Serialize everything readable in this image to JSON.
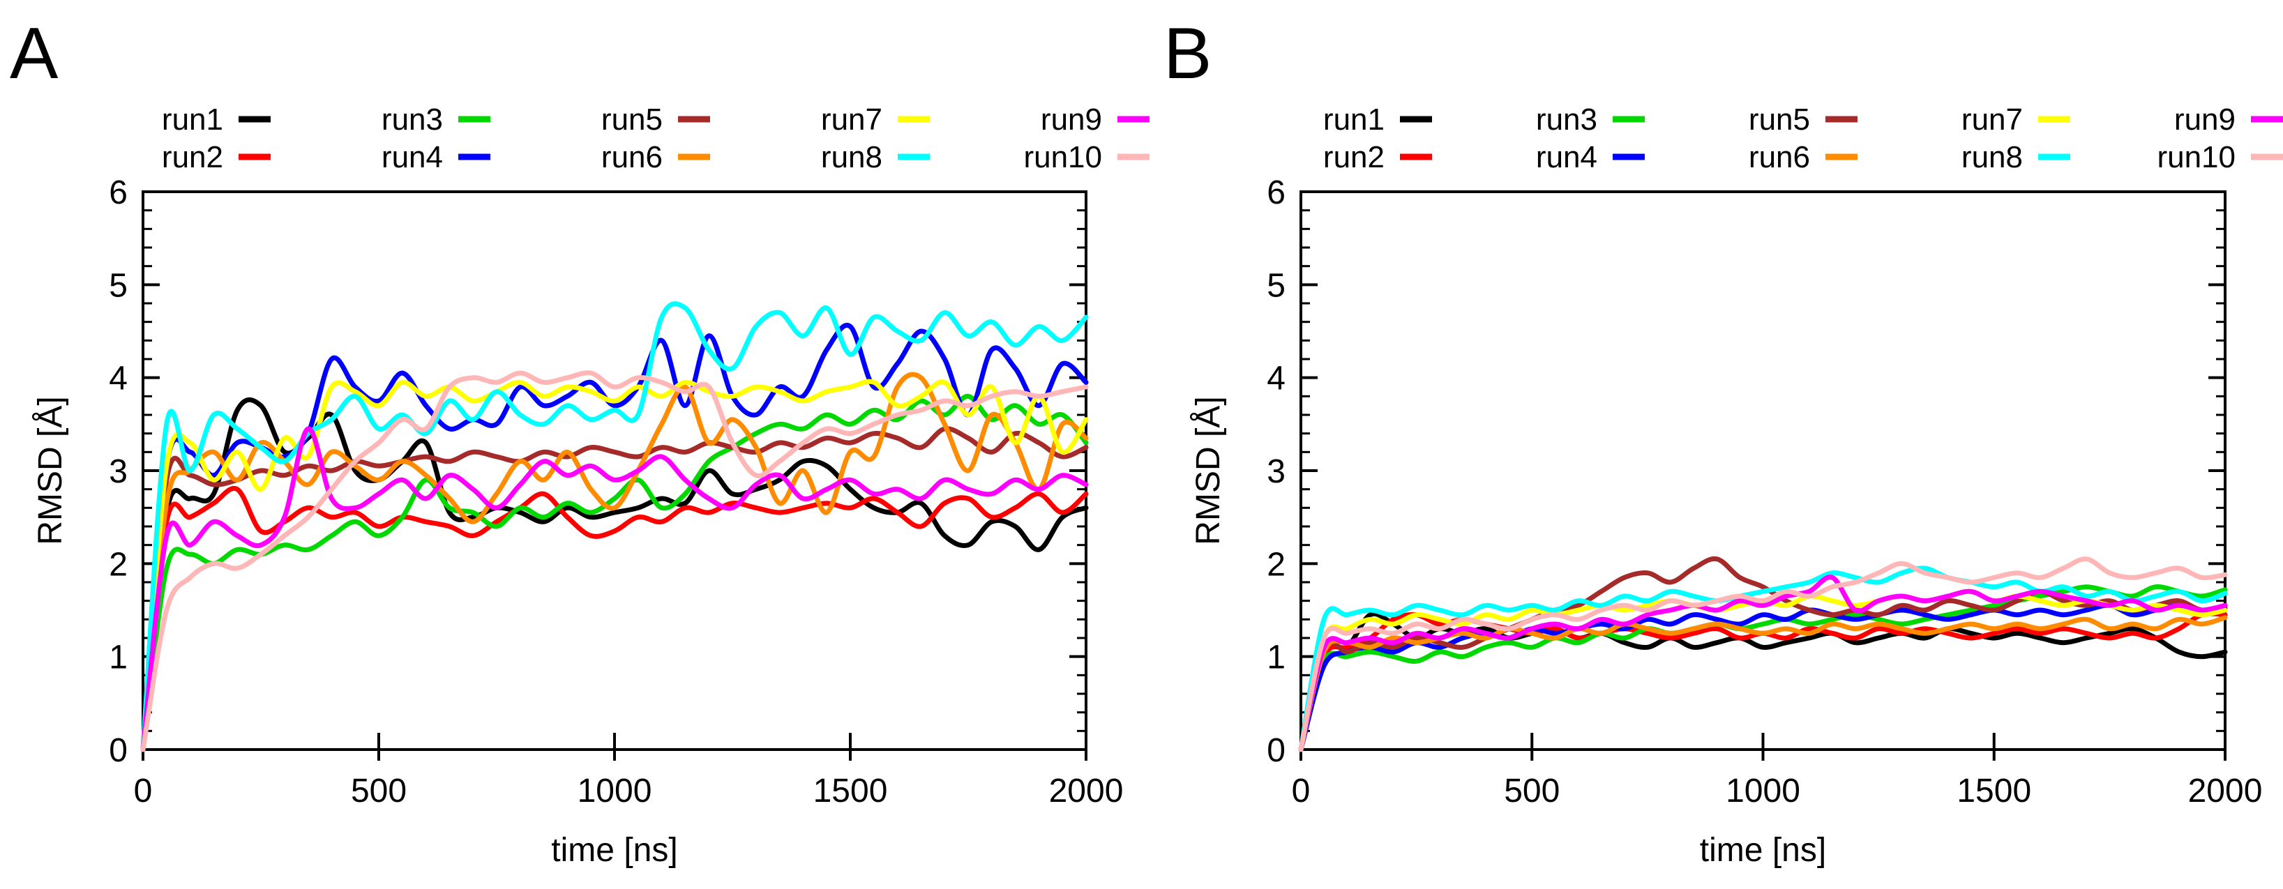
{
  "figure": {
    "panel_labels": [
      "A",
      "B"
    ]
  },
  "chart_data": [
    {
      "panel": "A",
      "type": "line",
      "xlabel": "time [ns]",
      "ylabel": "RMSD [Å]",
      "xlim": [
        0,
        2000
      ],
      "ylim": [
        0,
        6
      ],
      "x_ticks": [
        0,
        500,
        1000,
        1500,
        2000
      ],
      "y_ticks": [
        0,
        1,
        2,
        3,
        4,
        5,
        6
      ],
      "y_minor_step": 0.2,
      "legend_position": "above-plot, 5 columns x 2 rows",
      "x": [
        0,
        50,
        100,
        150,
        200,
        250,
        300,
        350,
        400,
        450,
        500,
        550,
        600,
        650,
        700,
        750,
        800,
        850,
        900,
        950,
        1000,
        1050,
        1100,
        1150,
        1200,
        1250,
        1300,
        1350,
        1400,
        1450,
        1500,
        1550,
        1600,
        1650,
        1700,
        1750,
        1800,
        1850,
        1900,
        1950,
        2000
      ],
      "series": [
        {
          "name": "run1",
          "color": "#000000",
          "values": [
            0,
            2.55,
            2.7,
            2.75,
            3.65,
            3.7,
            3.2,
            3.35,
            3.6,
            3.0,
            2.9,
            3.1,
            3.3,
            2.55,
            2.5,
            2.6,
            2.55,
            2.45,
            2.6,
            2.5,
            2.55,
            2.6,
            2.7,
            2.65,
            3.0,
            2.75,
            2.8,
            2.9,
            3.1,
            3.05,
            2.8,
            2.6,
            2.55,
            2.65,
            2.3,
            2.2,
            2.45,
            2.4,
            2.15,
            2.5,
            2.6
          ]
        },
        {
          "name": "run2",
          "color": "#ff0000",
          "values": [
            0,
            2.45,
            2.5,
            2.65,
            2.8,
            2.35,
            2.45,
            2.6,
            2.5,
            2.55,
            2.4,
            2.5,
            2.45,
            2.4,
            2.3,
            2.45,
            2.6,
            2.75,
            2.5,
            2.3,
            2.35,
            2.5,
            2.45,
            2.6,
            2.55,
            2.65,
            2.6,
            2.55,
            2.6,
            2.65,
            2.6,
            2.7,
            2.55,
            2.4,
            2.65,
            2.7,
            2.5,
            2.6,
            2.75,
            2.55,
            2.75
          ]
        },
        {
          "name": "run3",
          "color": "#00d800",
          "values": [
            0,
            1.95,
            2.1,
            2.0,
            2.15,
            2.1,
            2.2,
            2.15,
            2.3,
            2.45,
            2.3,
            2.5,
            2.9,
            2.6,
            2.55,
            2.4,
            2.6,
            2.5,
            2.65,
            2.55,
            2.7,
            2.9,
            2.6,
            2.75,
            3.1,
            3.25,
            3.4,
            3.5,
            3.45,
            3.6,
            3.5,
            3.65,
            3.55,
            3.75,
            3.6,
            3.8,
            3.55,
            3.7,
            3.5,
            3.6,
            3.3
          ]
        },
        {
          "name": "run4",
          "color": "#0000ff",
          "values": [
            0,
            3.05,
            3.2,
            2.95,
            3.3,
            3.25,
            3.15,
            3.4,
            4.2,
            3.9,
            3.75,
            4.05,
            3.7,
            3.45,
            3.55,
            3.5,
            3.9,
            3.7,
            3.8,
            3.95,
            3.7,
            3.9,
            4.4,
            3.7,
            4.45,
            3.8,
            3.6,
            3.9,
            3.8,
            4.3,
            4.55,
            3.9,
            4.15,
            4.5,
            4.2,
            3.6,
            4.3,
            4.1,
            3.7,
            4.15,
            3.95
          ]
        },
        {
          "name": "run5",
          "color": "#a52a2a",
          "values": [
            0,
            2.9,
            2.95,
            2.85,
            2.9,
            3.0,
            2.95,
            3.05,
            3.0,
            3.1,
            3.05,
            3.1,
            3.15,
            3.1,
            3.2,
            3.15,
            3.1,
            3.2,
            3.15,
            3.25,
            3.2,
            3.15,
            3.25,
            3.2,
            3.3,
            3.25,
            3.2,
            3.3,
            3.25,
            3.35,
            3.3,
            3.4,
            3.35,
            3.25,
            3.45,
            3.35,
            3.2,
            3.4,
            3.3,
            3.15,
            3.25
          ]
        },
        {
          "name": "run6",
          "color": "#ff8c00",
          "values": [
            0,
            2.65,
            3.0,
            3.2,
            2.9,
            3.3,
            3.1,
            2.85,
            3.2,
            3.05,
            2.9,
            3.1,
            2.95,
            2.7,
            2.45,
            2.75,
            3.1,
            2.9,
            3.2,
            2.8,
            2.6,
            3.0,
            3.5,
            3.9,
            3.3,
            3.55,
            3.25,
            2.65,
            3.0,
            2.55,
            3.2,
            3.15,
            3.9,
            4.0,
            3.5,
            3.0,
            3.6,
            3.3,
            2.8,
            3.5,
            3.35
          ]
        },
        {
          "name": "run7",
          "color": "#ffff00",
          "values": [
            0,
            3.05,
            3.3,
            2.9,
            3.2,
            2.8,
            3.35,
            3.15,
            3.9,
            3.85,
            3.7,
            3.95,
            3.8,
            3.9,
            3.75,
            3.85,
            3.95,
            3.8,
            3.9,
            3.85,
            3.75,
            3.9,
            3.8,
            3.95,
            3.85,
            3.8,
            3.9,
            3.85,
            3.75,
            3.85,
            3.9,
            3.95,
            3.7,
            3.8,
            3.95,
            3.6,
            3.9,
            3.3,
            3.8,
            3.2,
            3.55
          ]
        },
        {
          "name": "run8",
          "color": "#00ffff",
          "values": [
            0,
            3.5,
            3.0,
            3.6,
            3.45,
            3.25,
            3.1,
            3.4,
            3.55,
            3.8,
            3.45,
            3.6,
            3.4,
            3.75,
            3.55,
            3.85,
            3.6,
            3.5,
            3.7,
            3.55,
            3.65,
            3.6,
            4.65,
            4.75,
            4.3,
            4.1,
            4.55,
            4.7,
            4.45,
            4.75,
            4.25,
            4.65,
            4.5,
            4.4,
            4.7,
            4.45,
            4.6,
            4.35,
            4.55,
            4.4,
            4.65
          ]
        },
        {
          "name": "run9",
          "color": "#ff00ff",
          "values": [
            0,
            2.3,
            2.2,
            2.45,
            2.3,
            2.2,
            2.5,
            3.45,
            2.7,
            2.6,
            2.75,
            2.9,
            2.7,
            2.95,
            2.8,
            2.6,
            2.85,
            3.1,
            2.95,
            3.05,
            2.9,
            3.0,
            3.15,
            2.9,
            2.7,
            2.6,
            2.85,
            2.95,
            2.7,
            2.8,
            2.9,
            2.75,
            2.8,
            2.7,
            2.9,
            2.8,
            2.75,
            2.9,
            2.8,
            2.95,
            2.85
          ]
        },
        {
          "name": "run10",
          "color": "#ffb6b6",
          "values": [
            0,
            1.5,
            1.85,
            2.0,
            1.95,
            2.1,
            2.3,
            2.5,
            2.8,
            3.1,
            3.3,
            3.55,
            3.45,
            3.9,
            4.0,
            3.95,
            4.05,
            3.95,
            4.0,
            4.05,
            3.9,
            4.0,
            3.95,
            3.85,
            3.9,
            3.3,
            2.95,
            3.1,
            3.3,
            3.45,
            3.4,
            3.5,
            3.6,
            3.65,
            3.75,
            3.7,
            3.8,
            3.85,
            3.8,
            3.85,
            3.9
          ]
        }
      ]
    },
    {
      "panel": "B",
      "type": "line",
      "xlabel": "time [ns]",
      "ylabel": "RMSD [Å]",
      "xlim": [
        0,
        2000
      ],
      "ylim": [
        0,
        6
      ],
      "x_ticks": [
        0,
        500,
        1000,
        1500,
        2000
      ],
      "y_ticks": [
        0,
        1,
        2,
        3,
        4,
        5,
        6
      ],
      "y_minor_step": 0.2,
      "legend_position": "above-plot, 5 columns x 2 rows",
      "x": [
        0,
        50,
        100,
        150,
        200,
        250,
        300,
        350,
        400,
        450,
        500,
        550,
        600,
        650,
        700,
        750,
        800,
        850,
        900,
        950,
        1000,
        1050,
        1100,
        1150,
        1200,
        1250,
        1300,
        1350,
        1400,
        1450,
        1500,
        1550,
        1600,
        1650,
        1700,
        1750,
        1800,
        1850,
        1900,
        1950,
        2000
      ],
      "series": [
        {
          "name": "run1",
          "color": "#000000",
          "values": [
            0,
            1.05,
            1.1,
            1.45,
            1.35,
            1.2,
            1.3,
            1.25,
            1.3,
            1.2,
            1.25,
            1.3,
            1.2,
            1.25,
            1.15,
            1.1,
            1.2,
            1.1,
            1.15,
            1.2,
            1.1,
            1.15,
            1.2,
            1.25,
            1.15,
            1.2,
            1.25,
            1.2,
            1.3,
            1.25,
            1.2,
            1.25,
            1.2,
            1.15,
            1.2,
            1.25,
            1.3,
            1.2,
            1.05,
            1.0,
            1.05
          ]
        },
        {
          "name": "run2",
          "color": "#ff0000",
          "values": [
            0,
            1.0,
            1.1,
            1.2,
            1.4,
            1.45,
            1.35,
            1.4,
            1.35,
            1.3,
            1.25,
            1.3,
            1.2,
            1.25,
            1.3,
            1.25,
            1.2,
            1.25,
            1.3,
            1.2,
            1.25,
            1.2,
            1.3,
            1.25,
            1.2,
            1.3,
            1.25,
            1.3,
            1.25,
            1.2,
            1.25,
            1.3,
            1.25,
            1.3,
            1.25,
            1.2,
            1.25,
            1.2,
            1.3,
            1.45,
            1.45
          ]
        },
        {
          "name": "run3",
          "color": "#00d800",
          "values": [
            0,
            0.95,
            1.0,
            1.05,
            1.0,
            0.95,
            1.05,
            1.0,
            1.1,
            1.15,
            1.1,
            1.2,
            1.15,
            1.25,
            1.2,
            1.3,
            1.25,
            1.3,
            1.35,
            1.3,
            1.35,
            1.4,
            1.35,
            1.4,
            1.45,
            1.4,
            1.35,
            1.4,
            1.45,
            1.5,
            1.55,
            1.6,
            1.65,
            1.7,
            1.75,
            1.7,
            1.65,
            1.75,
            1.7,
            1.65,
            1.72
          ]
        },
        {
          "name": "run4",
          "color": "#0000ff",
          "values": [
            0,
            0.9,
            1.05,
            1.1,
            1.05,
            1.15,
            1.1,
            1.2,
            1.25,
            1.2,
            1.3,
            1.25,
            1.3,
            1.35,
            1.3,
            1.4,
            1.35,
            1.45,
            1.4,
            1.35,
            1.45,
            1.4,
            1.5,
            1.45,
            1.4,
            1.45,
            1.5,
            1.45,
            1.4,
            1.45,
            1.5,
            1.45,
            1.5,
            1.45,
            1.5,
            1.55,
            1.45,
            1.5,
            1.55,
            1.5,
            1.52
          ]
        },
        {
          "name": "run5",
          "color": "#a52a2a",
          "values": [
            0,
            1.1,
            1.05,
            1.15,
            1.1,
            1.2,
            1.15,
            1.1,
            1.2,
            1.3,
            1.4,
            1.5,
            1.55,
            1.7,
            1.85,
            1.9,
            1.8,
            1.95,
            2.05,
            1.85,
            1.75,
            1.6,
            1.5,
            1.45,
            1.5,
            1.45,
            1.55,
            1.5,
            1.6,
            1.55,
            1.5,
            1.6,
            1.7,
            1.6,
            1.55,
            1.6,
            1.5,
            1.55,
            1.6,
            1.5,
            1.55
          ]
        },
        {
          "name": "run6",
          "color": "#ff8c00",
          "values": [
            0,
            1.05,
            1.15,
            1.1,
            1.2,
            1.15,
            1.2,
            1.25,
            1.2,
            1.3,
            1.25,
            1.2,
            1.3,
            1.25,
            1.35,
            1.3,
            1.25,
            1.3,
            1.35,
            1.3,
            1.25,
            1.3,
            1.25,
            1.35,
            1.3,
            1.35,
            1.3,
            1.25,
            1.3,
            1.35,
            1.3,
            1.35,
            1.3,
            1.35,
            1.4,
            1.3,
            1.35,
            1.3,
            1.4,
            1.35,
            1.42
          ]
        },
        {
          "name": "run7",
          "color": "#ffff00",
          "values": [
            0,
            1.2,
            1.3,
            1.4,
            1.35,
            1.45,
            1.4,
            1.35,
            1.45,
            1.4,
            1.5,
            1.45,
            1.5,
            1.55,
            1.5,
            1.55,
            1.6,
            1.55,
            1.5,
            1.55,
            1.6,
            1.55,
            1.65,
            1.6,
            1.55,
            1.6,
            1.65,
            1.6,
            1.65,
            1.7,
            1.6,
            1.65,
            1.6,
            1.55,
            1.6,
            1.55,
            1.5,
            1.55,
            1.5,
            1.45,
            1.5
          ]
        },
        {
          "name": "run8",
          "color": "#00ffff",
          "values": [
            0,
            1.4,
            1.45,
            1.5,
            1.45,
            1.55,
            1.5,
            1.45,
            1.55,
            1.5,
            1.55,
            1.5,
            1.6,
            1.55,
            1.65,
            1.6,
            1.7,
            1.65,
            1.6,
            1.65,
            1.7,
            1.75,
            1.8,
            1.9,
            1.85,
            1.8,
            1.9,
            1.95,
            1.85,
            1.8,
            1.75,
            1.8,
            1.7,
            1.75,
            1.65,
            1.7,
            1.6,
            1.65,
            1.7,
            1.6,
            1.68
          ]
        },
        {
          "name": "run9",
          "color": "#ff00ff",
          "values": [
            0,
            1.1,
            1.15,
            1.2,
            1.15,
            1.25,
            1.2,
            1.3,
            1.25,
            1.2,
            1.3,
            1.35,
            1.3,
            1.4,
            1.35,
            1.45,
            1.5,
            1.55,
            1.5,
            1.6,
            1.55,
            1.65,
            1.7,
            1.85,
            1.5,
            1.6,
            1.65,
            1.6,
            1.65,
            1.7,
            1.6,
            1.65,
            1.7,
            1.65,
            1.6,
            1.55,
            1.6,
            1.5,
            1.55,
            1.5,
            1.55
          ]
        },
        {
          "name": "run10",
          "color": "#ffb6b6",
          "values": [
            0,
            1.2,
            1.25,
            1.3,
            1.25,
            1.35,
            1.3,
            1.4,
            1.35,
            1.3,
            1.4,
            1.45,
            1.4,
            1.5,
            1.55,
            1.5,
            1.6,
            1.55,
            1.6,
            1.65,
            1.6,
            1.7,
            1.65,
            1.75,
            1.8,
            1.9,
            2.0,
            1.9,
            1.85,
            1.8,
            1.85,
            1.9,
            1.85,
            1.95,
            2.05,
            1.9,
            1.85,
            1.9,
            1.95,
            1.85,
            1.88
          ]
        }
      ]
    }
  ]
}
